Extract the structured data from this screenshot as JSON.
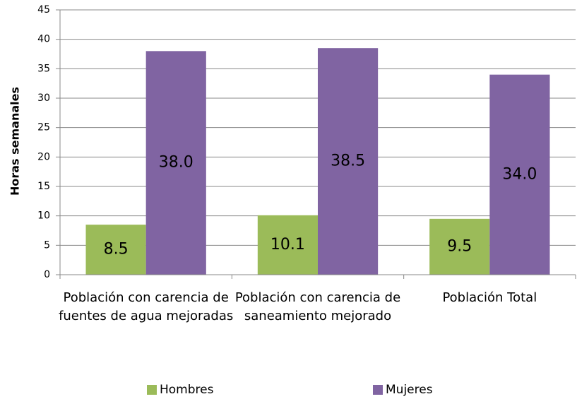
{
  "chart_data": {
    "type": "bar",
    "y_label": "Horas semanales",
    "categories": [
      "Población con carencia de fuentes de agua mejoradas",
      "Población con carencia de saneamiento mejorado",
      "Población Total"
    ],
    "series": [
      {
        "name": "Hombres",
        "color": "#9bbb59",
        "values": [
          8.5,
          10.1,
          9.5
        ],
        "value_labels": [
          "8.5",
          "10.1",
          "9.5"
        ]
      },
      {
        "name": "Mujeres",
        "color": "#8064a2",
        "values": [
          38,
          38.5,
          34
        ],
        "value_labels": [
          "38.0",
          "38.5",
          "34.0"
        ]
      }
    ],
    "ylim": [
      0,
      45
    ],
    "yticks": [
      0,
      5,
      10,
      15,
      20,
      25,
      30,
      35,
      40,
      45
    ],
    "grid": true,
    "legend": "bottom"
  }
}
